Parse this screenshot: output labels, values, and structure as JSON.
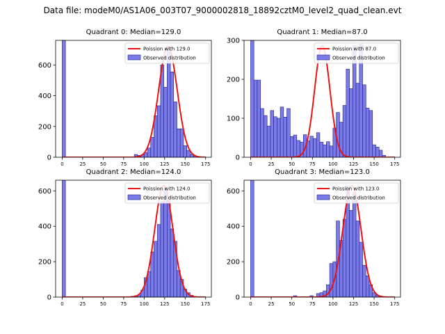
{
  "suptitle": "Data file: modeM0/AS1A06_003T07_9000002818_18892cztM0_level2_quad_clean.evt",
  "colors": {
    "bar_fill": "#7b7be8",
    "bar_edge": "#1a1a8c",
    "poisson_line": "#ee1111"
  },
  "chart_data": [
    {
      "type": "bar",
      "title": "Quadrant 0: Median=129.0",
      "median": 129.0,
      "xlim": [
        -8,
        182
      ],
      "ylim": [
        0,
        760
      ],
      "xticks": [
        0,
        25,
        50,
        75,
        100,
        125,
        150,
        175
      ],
      "yticks": [
        0,
        200,
        400,
        600
      ],
      "bin_width": 4,
      "bins": [
        {
          "x": 0,
          "h": 760
        },
        {
          "x": 88,
          "h": 18
        },
        {
          "x": 92,
          "h": 12
        },
        {
          "x": 96,
          "h": 15
        },
        {
          "x": 100,
          "h": 30
        },
        {
          "x": 104,
          "h": 60
        },
        {
          "x": 108,
          "h": 130
        },
        {
          "x": 112,
          "h": 270
        },
        {
          "x": 116,
          "h": 335
        },
        {
          "x": 120,
          "h": 600
        },
        {
          "x": 124,
          "h": 455
        },
        {
          "x": 128,
          "h": 710
        },
        {
          "x": 132,
          "h": 555
        },
        {
          "x": 136,
          "h": 360
        },
        {
          "x": 140,
          "h": 185
        },
        {
          "x": 144,
          "h": 185
        },
        {
          "x": 148,
          "h": 75
        },
        {
          "x": 152,
          "h": 45
        },
        {
          "x": 156,
          "h": 20
        },
        {
          "x": 160,
          "h": 8
        }
      ],
      "poisson_peak": 720,
      "legend": [
        "Poission with 129.0",
        "Observed distribution"
      ]
    },
    {
      "type": "bar",
      "title": "Quadrant 1: Median=87.0",
      "median": 87.0,
      "xlim": [
        -8,
        182
      ],
      "ylim": [
        0,
        300
      ],
      "xticks": [
        0,
        25,
        50,
        75,
        100,
        125,
        150,
        175
      ],
      "yticks": [
        0,
        100,
        200,
        300
      ],
      "bin_width": 4,
      "bins": [
        {
          "x": 0,
          "h": 300
        },
        {
          "x": 4,
          "h": 198
        },
        {
          "x": 8,
          "h": 198
        },
        {
          "x": 12,
          "h": 125
        },
        {
          "x": 16,
          "h": 107
        },
        {
          "x": 20,
          "h": 80
        },
        {
          "x": 24,
          "h": 120
        },
        {
          "x": 28,
          "h": 104
        },
        {
          "x": 32,
          "h": 100
        },
        {
          "x": 36,
          "h": 129
        },
        {
          "x": 40,
          "h": 103
        },
        {
          "x": 44,
          "h": 125
        },
        {
          "x": 48,
          "h": 53
        },
        {
          "x": 52,
          "h": 57
        },
        {
          "x": 56,
          "h": 43
        },
        {
          "x": 60,
          "h": 39
        },
        {
          "x": 64,
          "h": 58
        },
        {
          "x": 68,
          "h": 42
        },
        {
          "x": 72,
          "h": 54
        },
        {
          "x": 76,
          "h": 48
        },
        {
          "x": 80,
          "h": 63
        },
        {
          "x": 84,
          "h": 39
        },
        {
          "x": 88,
          "h": 32
        },
        {
          "x": 92,
          "h": 40
        },
        {
          "x": 96,
          "h": 29
        },
        {
          "x": 100,
          "h": 75
        },
        {
          "x": 104,
          "h": 115
        },
        {
          "x": 108,
          "h": 90
        },
        {
          "x": 112,
          "h": 133
        },
        {
          "x": 116,
          "h": 226
        },
        {
          "x": 120,
          "h": 176
        },
        {
          "x": 124,
          "h": 286
        },
        {
          "x": 128,
          "h": 190
        },
        {
          "x": 132,
          "h": 290
        },
        {
          "x": 136,
          "h": 186
        },
        {
          "x": 140,
          "h": 126
        },
        {
          "x": 144,
          "h": 120
        },
        {
          "x": 148,
          "h": 32
        },
        {
          "x": 152,
          "h": 26
        },
        {
          "x": 156,
          "h": 18
        },
        {
          "x": 160,
          "h": 5
        }
      ],
      "poisson_peak": 286,
      "legend": [
        "Poission with 87.0",
        "Observed distribution"
      ]
    },
    {
      "type": "bar",
      "title": "Quadrant 2: Median=124.0",
      "median": 124.0,
      "xlim": [
        -8,
        182
      ],
      "ylim": [
        0,
        660
      ],
      "xticks": [
        0,
        25,
        50,
        75,
        100,
        125,
        150,
        175
      ],
      "yticks": [
        0,
        200,
        400,
        600
      ],
      "bin_width": 4,
      "bins": [
        {
          "x": 0,
          "h": 660
        },
        {
          "x": 84,
          "h": 5
        },
        {
          "x": 88,
          "h": 8
        },
        {
          "x": 92,
          "h": 12
        },
        {
          "x": 96,
          "h": 40
        },
        {
          "x": 100,
          "h": 110
        },
        {
          "x": 104,
          "h": 145
        },
        {
          "x": 108,
          "h": 255
        },
        {
          "x": 112,
          "h": 315
        },
        {
          "x": 116,
          "h": 410
        },
        {
          "x": 120,
          "h": 540
        },
        {
          "x": 124,
          "h": 610
        },
        {
          "x": 128,
          "h": 550
        },
        {
          "x": 132,
          "h": 385
        },
        {
          "x": 136,
          "h": 315
        },
        {
          "x": 140,
          "h": 150
        },
        {
          "x": 144,
          "h": 100
        },
        {
          "x": 148,
          "h": 45
        },
        {
          "x": 152,
          "h": 25
        },
        {
          "x": 156,
          "h": 10
        }
      ],
      "poisson_peak": 630,
      "legend": [
        "Poission with 124.0",
        "Observed distribution"
      ]
    },
    {
      "type": "bar",
      "title": "Quadrant 3: Median=123.0",
      "median": 123.0,
      "xlim": [
        -8,
        182
      ],
      "ylim": [
        0,
        660
      ],
      "xticks": [
        0,
        25,
        50,
        75,
        100,
        125,
        150,
        175
      ],
      "yticks": [
        0,
        200,
        400,
        600
      ],
      "bin_width": 4,
      "bins": [
        {
          "x": 0,
          "h": 660
        },
        {
          "x": 52,
          "h": 8
        },
        {
          "x": 72,
          "h": 8
        },
        {
          "x": 80,
          "h": 20
        },
        {
          "x": 84,
          "h": 25
        },
        {
          "x": 88,
          "h": 35
        },
        {
          "x": 92,
          "h": 70
        },
        {
          "x": 96,
          "h": 190
        },
        {
          "x": 100,
          "h": 200
        },
        {
          "x": 104,
          "h": 430
        },
        {
          "x": 108,
          "h": 320
        },
        {
          "x": 112,
          "h": 440
        },
        {
          "x": 116,
          "h": 625
        },
        {
          "x": 120,
          "h": 490
        },
        {
          "x": 124,
          "h": 590
        },
        {
          "x": 128,
          "h": 430
        },
        {
          "x": 132,
          "h": 310
        },
        {
          "x": 136,
          "h": 180
        },
        {
          "x": 140,
          "h": 120
        },
        {
          "x": 144,
          "h": 70
        },
        {
          "x": 148,
          "h": 25
        },
        {
          "x": 152,
          "h": 10
        }
      ],
      "poisson_peak": 630,
      "legend": [
        "Poission with 123.0",
        "Observed distribution"
      ]
    }
  ]
}
